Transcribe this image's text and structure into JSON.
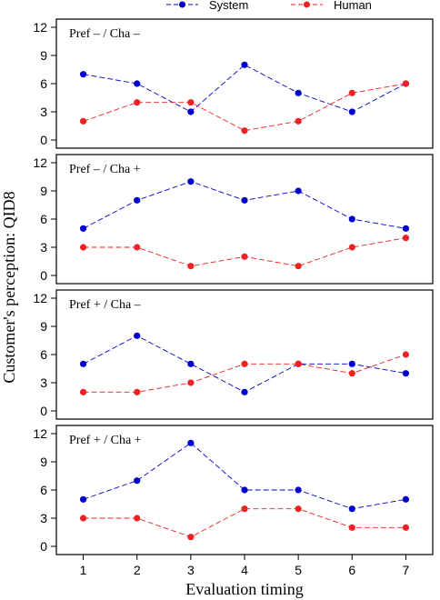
{
  "chart_data": {
    "type": "line",
    "xlabel": "Evaluation timing",
    "ylabel": "Customer's perception: QID8",
    "x": [
      1,
      2,
      3,
      4,
      5,
      6,
      7
    ],
    "xlim": [
      0.5,
      7.5
    ],
    "ylim": [
      0,
      12
    ],
    "yticks": [
      0,
      3,
      6,
      9,
      12
    ],
    "legend": {
      "placement": "top-center",
      "entries": [
        "System",
        "Human"
      ]
    },
    "colors": {
      "System": "#0000cc",
      "Human": "#ee2222"
    },
    "line_style": "dashed",
    "panels": [
      {
        "title": "Pref – / Cha –",
        "series": [
          {
            "name": "System",
            "values": [
              7,
              6,
              3,
              8,
              5,
              3,
              6
            ]
          },
          {
            "name": "Human",
            "values": [
              2,
              4,
              4,
              1,
              2,
              5,
              6
            ]
          }
        ]
      },
      {
        "title": "Pref – / Cha +",
        "series": [
          {
            "name": "System",
            "values": [
              5,
              8,
              10,
              8,
              9,
              6,
              5
            ]
          },
          {
            "name": "Human",
            "values": [
              3,
              3,
              1,
              2,
              1,
              3,
              4
            ]
          }
        ]
      },
      {
        "title": "Pref + / Cha –",
        "series": [
          {
            "name": "System",
            "values": [
              5,
              8,
              5,
              2,
              5,
              5,
              4
            ]
          },
          {
            "name": "Human",
            "values": [
              2,
              2,
              3,
              5,
              5,
              4,
              6
            ]
          }
        ]
      },
      {
        "title": "Pref + / Cha +",
        "series": [
          {
            "name": "System",
            "values": [
              5,
              7,
              11,
              6,
              6,
              4,
              5
            ]
          },
          {
            "name": "Human",
            "values": [
              3,
              3,
              1,
              4,
              4,
              2,
              2
            ]
          }
        ]
      }
    ]
  }
}
